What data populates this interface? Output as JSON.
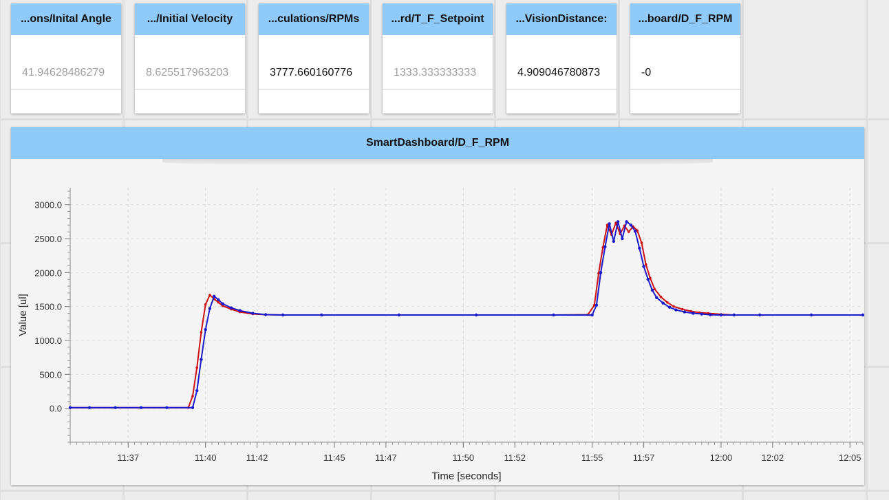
{
  "tiles": [
    {
      "title": "...ons/Inital Angle",
      "value": "41.94628486279",
      "style": "dim"
    },
    {
      "title": ".../Initial Velocity",
      "value": "8.625517963203",
      "style": "dim"
    },
    {
      "title": "...culations/RPMs",
      "value": "3777.660160776",
      "style": "dark"
    },
    {
      "title": "...rd/T_F_Setpoint",
      "value": "1333.333333333",
      "style": "dim"
    },
    {
      "title": "...VisionDistance:",
      "value": "4.909046780873",
      "style": "dark"
    },
    {
      "title": "...board/D_F_RPM",
      "value": "-0",
      "style": "dark"
    }
  ],
  "graph": {
    "title": "SmartDashboard/D_F_RPM"
  },
  "chart_data": {
    "type": "line",
    "title": "SmartDashboard/D_F_RPM",
    "xlabel": "Time [seconds]",
    "ylabel": "Value [ul]",
    "xlim": [
      "11:35:15",
      "12:06:00"
    ],
    "ylim": [
      -500,
      3250
    ],
    "yticks": [
      "0.0",
      "500.0",
      "1000.0",
      "1500.0",
      "2000.0",
      "2500.0",
      "3000.0"
    ],
    "xticks": [
      "11:37",
      "11:40",
      "11:42",
      "11:45",
      "11:47",
      "11:50",
      "11:52",
      "11:55",
      "11:57",
      "12:00",
      "12:02",
      "12:05"
    ],
    "grid": true,
    "colors": {
      "series_a": "#cc1111",
      "series_b": "#1a1acc"
    },
    "series": [
      {
        "color": "#cc1111",
        "x": [
          "11:35:15",
          "11:36:00",
          "11:37:00",
          "11:38:00",
          "11:39:00",
          "11:39:50",
          "11:40:00",
          "11:40:10",
          "11:40:20",
          "11:40:30",
          "11:40:40",
          "11:40:50",
          "11:41:00",
          "11:41:10",
          "11:41:30",
          "11:41:50",
          "11:42:20",
          "11:42:50",
          "11:43:30",
          "11:45:00",
          "11:48:00",
          "11:51:00",
          "11:54:00",
          "11:55:20",
          "11:55:35",
          "11:55:45",
          "11:55:55",
          "11:56:05",
          "11:56:15",
          "11:56:25",
          "11:56:35",
          "11:56:45",
          "11:56:55",
          "11:57:05",
          "11:57:15",
          "11:57:25",
          "11:57:35",
          "11:57:45",
          "11:57:55",
          "11:58:10",
          "11:58:25",
          "11:58:40",
          "11:59:00",
          "11:59:20",
          "11:59:40",
          "12:00:00",
          "12:00:30",
          "12:01:00",
          "12:02:00",
          "12:04:00",
          "12:06:00"
        ],
        "y": [
          10,
          10,
          10,
          10,
          10,
          10,
          180,
          600,
          1120,
          1530,
          1670,
          1610,
          1560,
          1510,
          1460,
          1420,
          1390,
          1380,
          1375,
          1375,
          1375,
          1375,
          1375,
          1380,
          1520,
          1990,
          2370,
          2700,
          2560,
          2730,
          2570,
          2690,
          2600,
          2680,
          2620,
          2440,
          2120,
          1920,
          1760,
          1640,
          1560,
          1500,
          1460,
          1430,
          1410,
          1400,
          1385,
          1375,
          1375,
          1375,
          1375
        ]
      },
      {
        "color": "#1a1acc",
        "x": [
          "11:35:15",
          "11:36:00",
          "11:37:00",
          "11:38:00",
          "11:39:00",
          "11:40:00",
          "11:40:10",
          "11:40:20",
          "11:40:30",
          "11:40:40",
          "11:40:50",
          "11:41:00",
          "11:41:10",
          "11:41:30",
          "11:41:50",
          "11:42:20",
          "11:42:50",
          "11:43:30",
          "11:45:00",
          "11:48:00",
          "11:51:00",
          "11:54:00",
          "11:55:30",
          "11:55:40",
          "11:55:50",
          "11:56:00",
          "11:56:10",
          "11:56:20",
          "11:56:30",
          "11:56:40",
          "11:56:50",
          "11:57:00",
          "11:57:10",
          "11:57:20",
          "11:57:30",
          "11:57:40",
          "11:57:50",
          "11:58:00",
          "11:58:15",
          "11:58:30",
          "11:58:45",
          "11:59:05",
          "11:59:25",
          "11:59:45",
          "12:00:05",
          "12:00:30",
          "12:01:00",
          "12:02:00",
          "12:04:00",
          "12:06:00"
        ],
        "y": [
          10,
          10,
          10,
          10,
          10,
          10,
          260,
          720,
          1160,
          1470,
          1650,
          1600,
          1540,
          1480,
          1440,
          1400,
          1380,
          1375,
          1375,
          1375,
          1375,
          1375,
          1375,
          1520,
          2000,
          2380,
          2720,
          2460,
          2750,
          2500,
          2750,
          2700,
          2610,
          2360,
          2090,
          1900,
          1740,
          1630,
          1550,
          1490,
          1450,
          1420,
          1400,
          1390,
          1378,
          1375,
          1375,
          1375,
          1375,
          1375
        ]
      }
    ]
  }
}
